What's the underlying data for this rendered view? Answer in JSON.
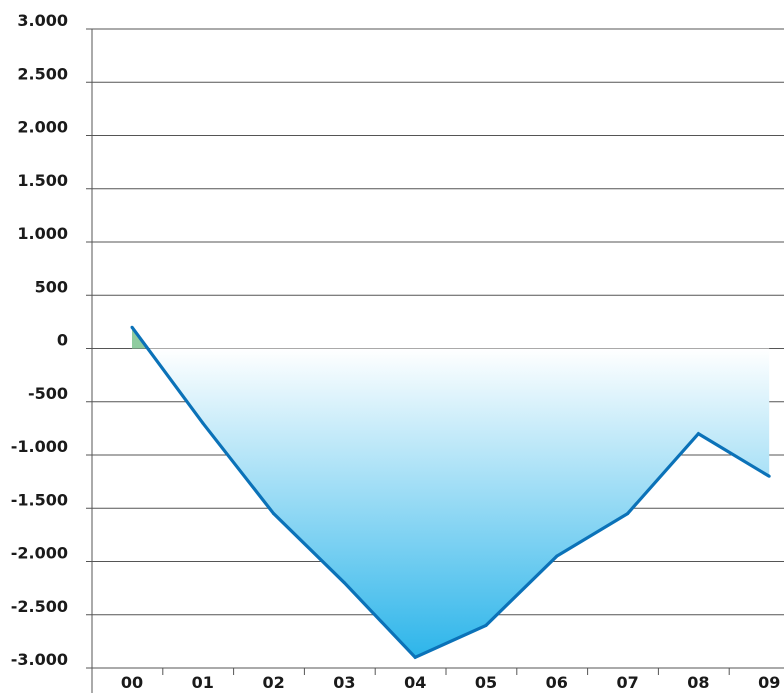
{
  "chart_data": {
    "type": "area",
    "x": [
      "00",
      "01",
      "02",
      "03",
      "04",
      "05",
      "06",
      "07",
      "08",
      "09"
    ],
    "series": [
      {
        "values": [
          200,
          -700,
          -1550,
          -2200,
          -2900,
          -2600,
          -1950,
          -1550,
          -800,
          -1200
        ]
      }
    ],
    "ylim": [
      -3000,
      3000
    ],
    "yticks": [
      "3.000",
      "2.500",
      "2.000",
      "1.500",
      "1.000",
      "500",
      "0",
      "-500",
      "-1.000",
      "-1.500",
      "-2.000",
      "-2.500",
      "-3.000"
    ],
    "grid": true,
    "colors": {
      "line": "#0b72b8",
      "fill_top": "#ffffff",
      "fill_bottom": "#2db5ea",
      "positive_fill": "#8fcc9f",
      "gridline": "#555555"
    }
  }
}
